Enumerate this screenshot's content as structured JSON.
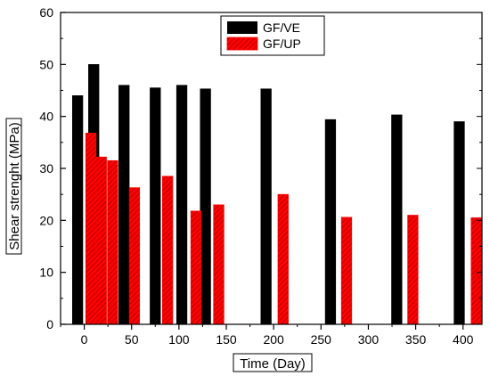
{
  "chart_data": {
    "type": "bar",
    "xlabel": "Time (Day)",
    "ylabel": "Shear strenght (MPa)",
    "xlim": [
      -25,
      420
    ],
    "ylim": [
      0,
      60
    ],
    "xticks": [
      0,
      50,
      100,
      150,
      200,
      250,
      300,
      350,
      400
    ],
    "yticks": [
      0,
      10,
      20,
      30,
      40,
      50,
      60
    ],
    "grid": false,
    "legend_position": "top-center",
    "series": [
      {
        "name": "GF/VE",
        "color": "#000000",
        "x": [
          -7,
          10,
          42,
          75,
          103,
          128,
          192,
          260,
          330,
          396
        ],
        "values": [
          44,
          50,
          46,
          45.5,
          46,
          45.3,
          45.3,
          39.4,
          40.3,
          39
        ]
      },
      {
        "name": "GF/UP",
        "color": "#ff0000",
        "x": [
          7,
          18,
          30,
          53,
          88,
          118,
          142,
          210,
          277,
          347,
          414
        ],
        "values": [
          36.8,
          32.2,
          31.5,
          26.3,
          28.5,
          21.8,
          23,
          25,
          20.6,
          21,
          20.5
        ]
      }
    ]
  }
}
